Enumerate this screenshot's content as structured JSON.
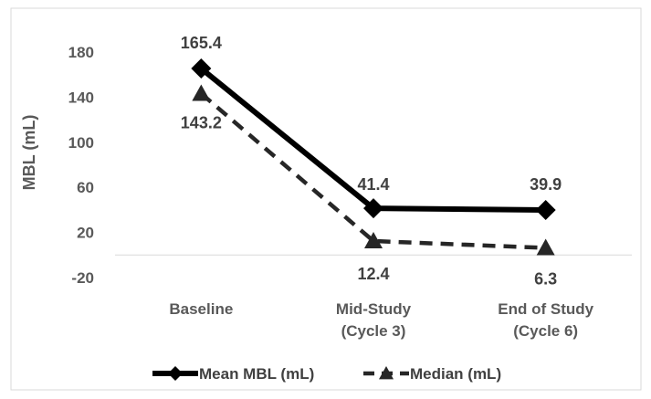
{
  "chart_data": {
    "type": "line",
    "title": "",
    "xlabel": "",
    "ylabel": "MBL (mL)",
    "categories": [
      [
        "Baseline"
      ],
      [
        "Mid-Study",
        "(Cycle 3)"
      ],
      [
        "End of Study",
        "(Cycle 6)"
      ]
    ],
    "ylim": [
      -20,
      200
    ],
    "yticks": [
      180,
      140,
      100,
      60,
      20,
      -20
    ],
    "grid": false,
    "legend_position": "bottom",
    "series": [
      {
        "name": "Mean MBL (mL)",
        "values": [
          165.4,
          41.4,
          39.9
        ],
        "labels": [
          "165.4",
          "41.4",
          "39.9"
        ],
        "label_placement": [
          "above",
          "above",
          "above"
        ],
        "marker": "diamond",
        "line_style": "solid",
        "color": "#000000"
      },
      {
        "name": "Median (mL)",
        "values": [
          143.2,
          12.4,
          6.3
        ],
        "labels": [
          "143.2",
          "12.4",
          "6.3"
        ],
        "label_placement": [
          "below",
          "below",
          "below"
        ],
        "marker": "triangle",
        "line_style": "dashed",
        "color": "#262626"
      }
    ]
  }
}
